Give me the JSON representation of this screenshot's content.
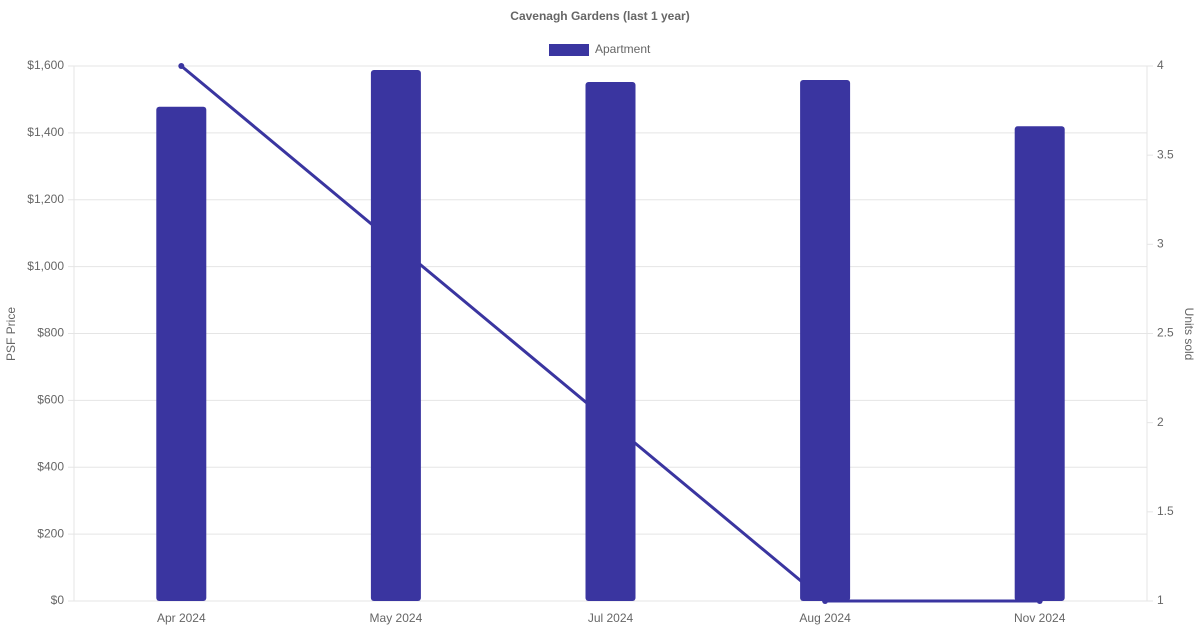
{
  "chart_data": {
    "type": "bar-line",
    "title": "Cavenagh Gardens (last 1 year)",
    "categories": [
      "Apr 2024",
      "May 2024",
      "Jul 2024",
      "Aug 2024",
      "Nov 2024"
    ],
    "series": [
      {
        "name": "Apartment",
        "type": "bar",
        "color": "#3a35a0",
        "values": [
          1478,
          1588,
          1552,
          1558,
          1420
        ]
      },
      {
        "type": "line",
        "axis": "y2",
        "color": "#3a35a0",
        "values": [
          4,
          3,
          2,
          1,
          1
        ]
      }
    ],
    "ylabel": "PSF Price",
    "y2label": "Units sold",
    "ylim": [
      0,
      1600
    ],
    "yticks": [
      {
        "value": 0,
        "label": "$0"
      },
      {
        "value": 200,
        "label": "$200"
      },
      {
        "value": 400,
        "label": "$400"
      },
      {
        "value": 600,
        "label": "$600"
      },
      {
        "value": 800,
        "label": "$800"
      },
      {
        "value": 1000,
        "label": "$1,000"
      },
      {
        "value": 1200,
        "label": "$1,200"
      },
      {
        "value": 1400,
        "label": "$1,400"
      },
      {
        "value": 1600,
        "label": "$1,600"
      }
    ],
    "y2lim": [
      1,
      4
    ],
    "y2ticks": [
      1,
      1.5,
      2,
      2.5,
      3,
      3.5,
      4
    ],
    "grid": true,
    "legend": "top"
  }
}
